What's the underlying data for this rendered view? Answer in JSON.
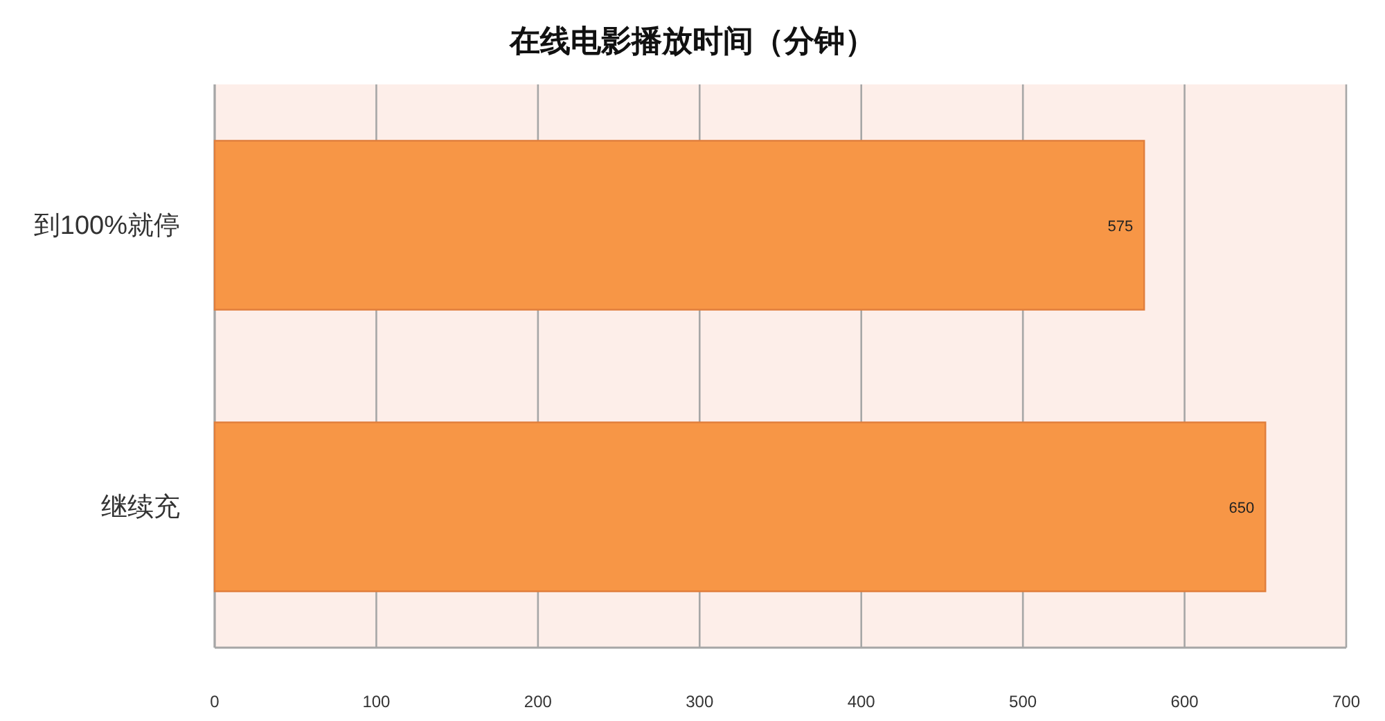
{
  "chart_data": {
    "type": "bar",
    "orientation": "horizontal",
    "title": "在线电影播放时间（分钟）",
    "categories": [
      "到100%就停",
      "继续充"
    ],
    "values": [
      575,
      650
    ],
    "color": "#f79646",
    "xlim": [
      0,
      700
    ],
    "xticks": [
      0,
      100,
      200,
      300,
      400,
      500,
      600,
      700
    ],
    "grid": "x",
    "data_labels": true
  }
}
